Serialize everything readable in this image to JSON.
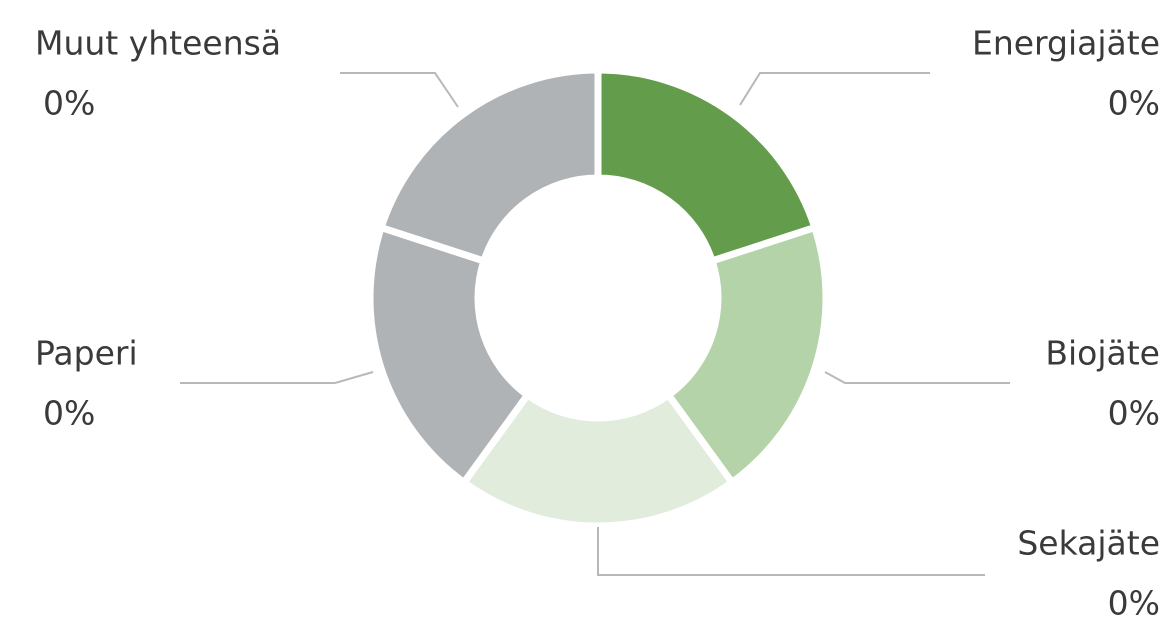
{
  "chart_data": {
    "type": "donut",
    "categories": [
      "Energiajäte",
      "Biojäte",
      "Sekajäte",
      "Paperi",
      "Muut yhteensä"
    ],
    "values": [
      0,
      0,
      0,
      0,
      0
    ],
    "value_labels": [
      "0%",
      "0%",
      "0%",
      "0%",
      "0%"
    ],
    "colors": [
      "#639c4b",
      "#b5d3a9",
      "#e1ecdc",
      "#b0b3b6",
      "#b0b3b6"
    ]
  }
}
